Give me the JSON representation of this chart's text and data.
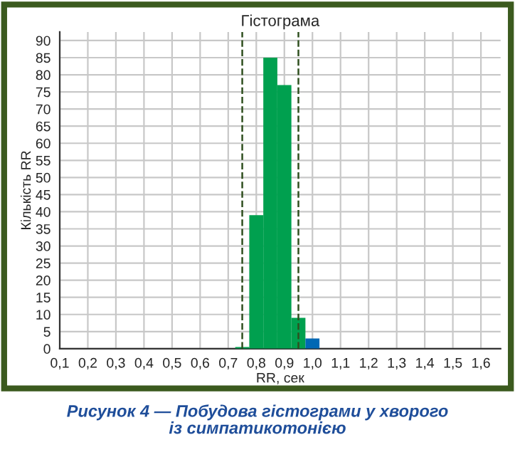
{
  "chart_data": {
    "type": "histogram",
    "title": "Гістограма",
    "xlabel": "RR, сек",
    "ylabel": "Кількість RR",
    "bins": [
      0.725,
      0.775,
      0.825,
      0.875,
      0.925,
      0.975,
      1.025
    ],
    "values": [
      0.5,
      39,
      85,
      77,
      9,
      3
    ],
    "colors": [
      "#00a04f",
      "#00a04f",
      "#00a04f",
      "#00a04f",
      "#00a04f",
      "#0068b4"
    ],
    "xlim": [
      0.1,
      1.67
    ],
    "ylim": [
      0,
      92.5
    ],
    "xticks": [
      {
        "value": 0.1,
        "label": "0,1"
      },
      {
        "value": 0.2,
        "label": "0,2"
      },
      {
        "value": 0.3,
        "label": "0,3"
      },
      {
        "value": 0.4,
        "label": "0,4"
      },
      {
        "value": 0.5,
        "label": "0,5"
      },
      {
        "value": 0.6,
        "label": "0,6"
      },
      {
        "value": 0.7,
        "label": "0,7"
      },
      {
        "value": 0.8,
        "label": "0,8"
      },
      {
        "value": 0.9,
        "label": "0,9"
      },
      {
        "value": 1.0,
        "label": "1,0"
      },
      {
        "value": 1.1,
        "label": "1,1"
      },
      {
        "value": 1.2,
        "label": "1,2"
      },
      {
        "value": 1.3,
        "label": "1,3"
      },
      {
        "value": 1.4,
        "label": "1,4"
      },
      {
        "value": 1.5,
        "label": "1,5"
      },
      {
        "value": 1.6,
        "label": "1,6"
      }
    ],
    "yticks": [
      0,
      5,
      10,
      15,
      20,
      25,
      30,
      35,
      40,
      45,
      50,
      55,
      60,
      65,
      70,
      75,
      80,
      85,
      90
    ],
    "ref_lines": [
      {
        "axis": "x",
        "value": 0.75,
        "color": "#2f4f1f",
        "line_style": "dashed"
      },
      {
        "axis": "x",
        "value": 0.95,
        "color": "#2f4f1f",
        "line_style": "dashed"
      }
    ],
    "grid": true,
    "annotations": [
      "Рисунок 4 — Побудова гістограми у хворого\nіз симпатикотонією"
    ]
  }
}
